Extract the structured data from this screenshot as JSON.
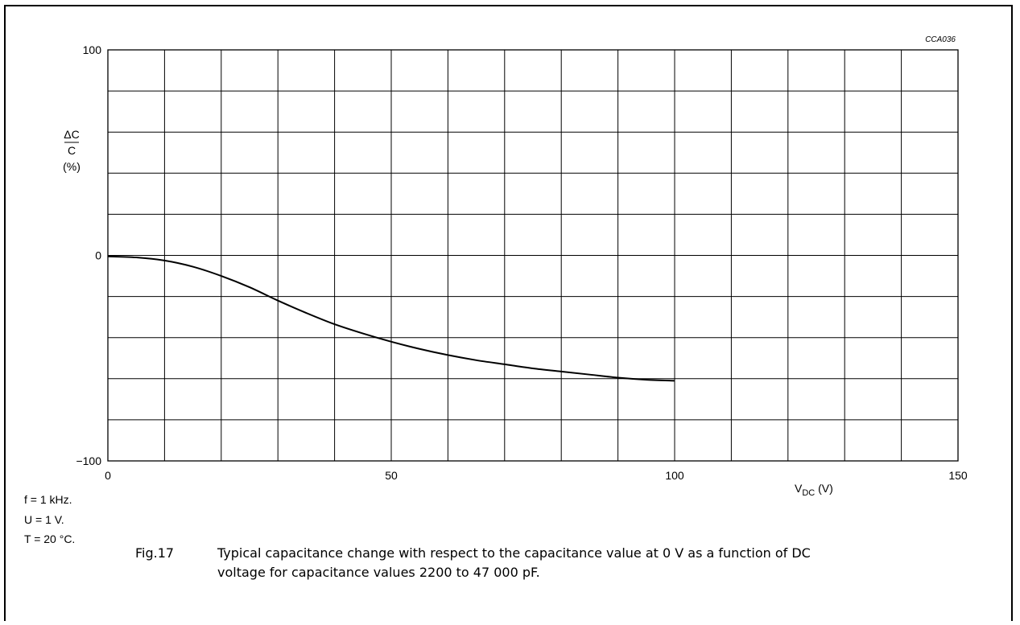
{
  "figure_code": "CCA036",
  "conditions": [
    "f = 1 kHz.",
    "U = 1 V.",
    "T = 20 °C."
  ],
  "caption": {
    "number": "Fig.17",
    "text": "Typical capacitance change with respect to the capacitance value at 0 V as a function of DC voltage for capacitance values 2200 to 47 000 pF."
  },
  "chart_data": {
    "type": "line",
    "title": "",
    "ylabel_top": "ΔC",
    "ylabel_bottom": "C",
    "ylabel_unit": "(%)",
    "xlabel_main": "V",
    "xlabel_sub": "DC",
    "xlabel_unit": "(V)",
    "xlim": [
      0,
      150
    ],
    "ylim": [
      -100,
      100
    ],
    "x_ticks": [
      0,
      50,
      100,
      150
    ],
    "y_ticks": [
      100,
      0,
      -100
    ],
    "y_tick_labels": [
      "100",
      "0",
      "−100"
    ],
    "grid": true,
    "grid_x_step": 10,
    "grid_y_step": 20,
    "series": [
      {
        "x": [
          0,
          5,
          10,
          15,
          20,
          25,
          30,
          35,
          40,
          45,
          50,
          55,
          60,
          65,
          70,
          75,
          80,
          85,
          90,
          95,
          100
        ],
        "y": [
          -0.5,
          -1,
          -2.5,
          -5.5,
          -10,
          -15.5,
          -22,
          -28,
          -33.5,
          -38,
          -42,
          -45.5,
          -48.5,
          -51,
          -53,
          -55,
          -56.5,
          -58,
          -59.5,
          -60.5,
          -61
        ]
      }
    ]
  }
}
